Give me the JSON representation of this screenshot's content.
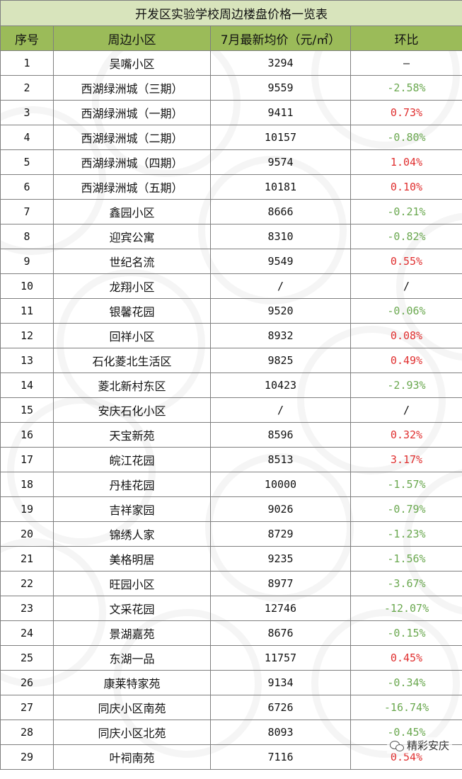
{
  "table": {
    "title": "开发区实验学校周边楼盘价格一览表",
    "headers": [
      "序号",
      "周边小区",
      "7月最新均价（元/㎡）",
      "环比"
    ],
    "rows": [
      {
        "no": "1",
        "name": "吴嘴小区",
        "price": "3294",
        "change": "—",
        "trend": "neu"
      },
      {
        "no": "2",
        "name": "西湖绿洲城（三期）",
        "price": "9559",
        "change": "-2.58%",
        "trend": "neg"
      },
      {
        "no": "3",
        "name": "西湖绿洲城（一期）",
        "price": "9411",
        "change": "0.73%",
        "trend": "pos"
      },
      {
        "no": "4",
        "name": "西湖绿洲城（二期）",
        "price": "10157",
        "change": "-0.80%",
        "trend": "neg"
      },
      {
        "no": "5",
        "name": "西湖绿洲城（四期）",
        "price": "9574",
        "change": "1.04%",
        "trend": "pos"
      },
      {
        "no": "6",
        "name": "西湖绿洲城（五期）",
        "price": "10181",
        "change": "0.10%",
        "trend": "pos"
      },
      {
        "no": "7",
        "name": "鑫园小区",
        "price": "8666",
        "change": "-0.21%",
        "trend": "neg"
      },
      {
        "no": "8",
        "name": "迎宾公寓",
        "price": "8310",
        "change": "-0.82%",
        "trend": "neg"
      },
      {
        "no": "9",
        "name": "世纪名流",
        "price": "9549",
        "change": "0.55%",
        "trend": "pos"
      },
      {
        "no": "10",
        "name": "龙翔小区",
        "price": "/",
        "change": "/",
        "trend": "neu"
      },
      {
        "no": "11",
        "name": "银馨花园",
        "price": "9520",
        "change": "-0.06%",
        "trend": "neg"
      },
      {
        "no": "12",
        "name": "回祥小区",
        "price": "8932",
        "change": "0.08%",
        "trend": "pos"
      },
      {
        "no": "13",
        "name": "石化菱北生活区",
        "price": "9825",
        "change": "0.49%",
        "trend": "pos"
      },
      {
        "no": "14",
        "name": "菱北新村东区",
        "price": "10423",
        "change": "-2.93%",
        "trend": "neg"
      },
      {
        "no": "15",
        "name": "安庆石化小区",
        "price": "/",
        "change": "/",
        "trend": "neu"
      },
      {
        "no": "16",
        "name": "天宝新苑",
        "price": "8596",
        "change": "0.32%",
        "trend": "pos"
      },
      {
        "no": "17",
        "name": "皖江花园",
        "price": "8513",
        "change": "3.17%",
        "trend": "pos"
      },
      {
        "no": "18",
        "name": "丹桂花园",
        "price": "10000",
        "change": "-1.57%",
        "trend": "neg"
      },
      {
        "no": "19",
        "name": "吉祥家园",
        "price": "9026",
        "change": "-0.79%",
        "trend": "neg"
      },
      {
        "no": "20",
        "name": "锦绣人家",
        "price": "8729",
        "change": "-1.23%",
        "trend": "neg"
      },
      {
        "no": "21",
        "name": "美格明居",
        "price": "9235",
        "change": "-1.56%",
        "trend": "neg"
      },
      {
        "no": "22",
        "name": "旺园小区",
        "price": "8977",
        "change": "-3.67%",
        "trend": "neg"
      },
      {
        "no": "23",
        "name": "文采花园",
        "price": "12746",
        "change": "-12.07%",
        "trend": "neg"
      },
      {
        "no": "24",
        "name": "景湖嘉苑",
        "price": "8676",
        "change": "-0.15%",
        "trend": "neg"
      },
      {
        "no": "25",
        "name": "东湖一品",
        "price": "11757",
        "change": "0.45%",
        "trend": "pos"
      },
      {
        "no": "26",
        "name": "康莱特家苑",
        "price": "9134",
        "change": "-0.34%",
        "trend": "neg"
      },
      {
        "no": "27",
        "name": "同庆小区南苑",
        "price": "6726",
        "change": "-16.74%",
        "trend": "neg"
      },
      {
        "no": "28",
        "name": "同庆小区北苑",
        "price": "8093",
        "change": "-0.45%",
        "trend": "neg"
      },
      {
        "no": "29",
        "name": "叶祠南苑",
        "price": "7116",
        "change": "0.54%",
        "trend": "pos"
      }
    ]
  },
  "watermark": {
    "brand_text": "精彩安庆",
    "icon": "wechat-icon"
  },
  "colors": {
    "title_bg": "#d8e4bc",
    "header_bg": "#9bbb59",
    "negative": "#6aa84f",
    "positive": "#e03030"
  }
}
